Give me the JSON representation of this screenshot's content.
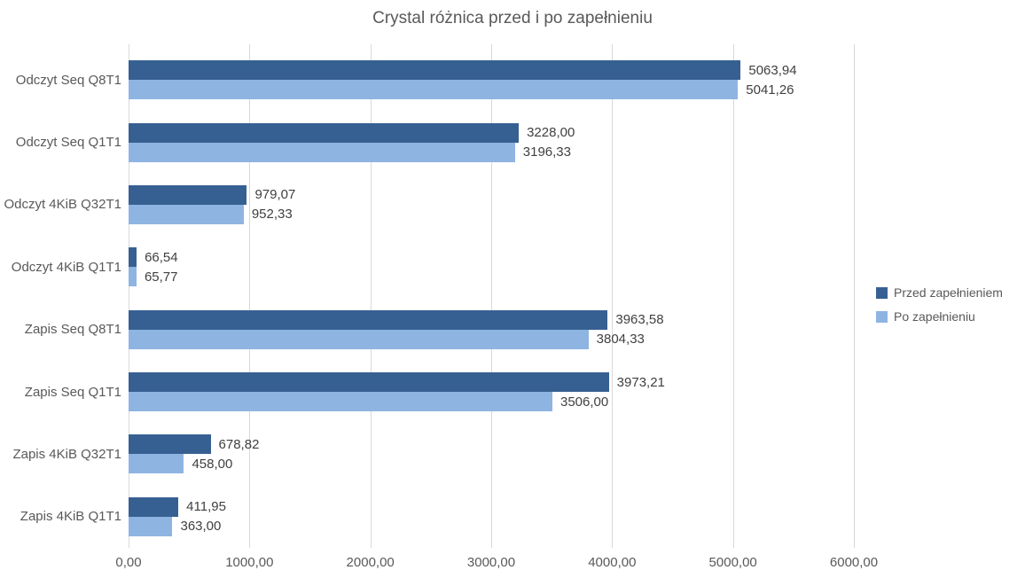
{
  "colors": {
    "series_przed": "#376092",
    "series_po": "#8EB4E2",
    "gridline": "#D9D9D9",
    "title_text": "#595959",
    "axis_text": "#595959",
    "data_label_text": "#404040",
    "background": "#FFFFFF"
  },
  "chart_data": {
    "type": "bar",
    "orientation": "horizontal",
    "title": "Crystal różnica przed i po zapełnieniu",
    "xlabel": "",
    "ylabel": "",
    "xlim": [
      0,
      6000
    ],
    "grid": true,
    "legend_position": "right",
    "categories": [
      "Odczyt Seq Q8T1",
      "Odczyt Seq Q1T1",
      "Odczyt 4KiB Q32T1",
      "Odczyt 4KiB Q1T1",
      "Zapis Seq Q8T1",
      "Zapis Seq Q1T1",
      "Zapis 4KiB Q32T1",
      "Zapis 4KiB Q1T1"
    ],
    "series": [
      {
        "name": "Przed zapełnieniem",
        "color": "#376092",
        "values": [
          5063.94,
          3228.0,
          979.07,
          66.54,
          3963.58,
          3973.21,
          678.82,
          411.95
        ],
        "labels": [
          "5063,94",
          "3228,00",
          "979,07",
          "66,54",
          "3963,58",
          "3973,21",
          "678,82",
          "411,95"
        ]
      },
      {
        "name": "Po zapełnieniu",
        "color": "#8EB4E2",
        "values": [
          5041.26,
          3196.33,
          952.33,
          65.77,
          3804.33,
          3506.0,
          458.0,
          363.0
        ],
        "labels": [
          "5041,26",
          "3196,33",
          "952,33",
          "65,77",
          "3804,33",
          "3506,00",
          "458,00",
          "363,00"
        ]
      }
    ],
    "x_ticks": [
      "0,00",
      "1000,00",
      "2000,00",
      "3000,00",
      "4000,00",
      "5000,00",
      "6000,00"
    ]
  }
}
